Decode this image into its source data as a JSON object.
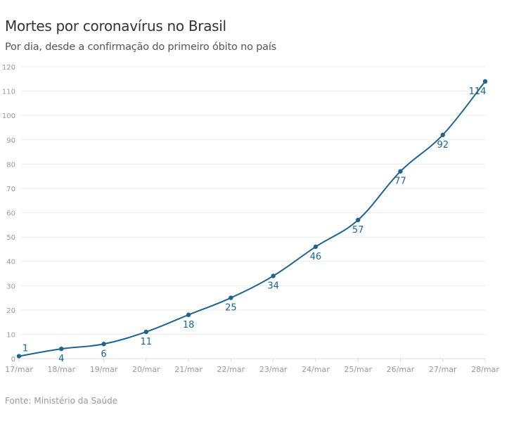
{
  "chart_data": {
    "type": "line",
    "title": "Mortes por coronavírus no Brasil",
    "subtitle": "Por dia, desde a confirmação do primeiro óbito no país",
    "source": "Fonte: Ministério da Saúde",
    "categories": [
      "17/mar",
      "18/mar",
      "19/mar",
      "20/mar",
      "21/mar",
      "22/mar",
      "23/mar",
      "24/mar",
      "25/mar",
      "26/mar",
      "27/mar",
      "28/mar"
    ],
    "values": [
      1,
      4,
      6,
      11,
      18,
      25,
      34,
      46,
      57,
      77,
      92,
      114
    ],
    "ylim": [
      0,
      120
    ],
    "yticks": [
      0,
      10,
      20,
      30,
      40,
      50,
      60,
      70,
      80,
      90,
      100,
      110,
      120
    ],
    "grid": true,
    "data_labels": true,
    "color": "#1f6491"
  }
}
